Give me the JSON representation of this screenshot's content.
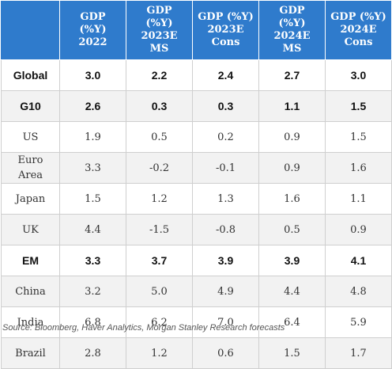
{
  "table": {
    "headers": [
      "",
      "GDP\n(%Y)\n2022",
      "GDP\n(%Y)\n2023E\nMS",
      "GDP (%Y)\n2023E\nCons",
      "GDP\n(%Y)\n2024E\nMS",
      "GDP (%Y)\n2024E\nCons"
    ],
    "header_color": "#2f7bcc",
    "rows": [
      {
        "label": "Global",
        "values": [
          "3.0",
          "2.2",
          "2.4",
          "2.7",
          "3.0"
        ],
        "style": "bold"
      },
      {
        "label": "G10",
        "values": [
          "2.6",
          "0.3",
          "0.3",
          "1.1",
          "1.5"
        ],
        "style": "bold"
      },
      {
        "label": "US",
        "values": [
          "1.9",
          "0.5",
          "0.2",
          "0.9",
          "1.5"
        ],
        "style": "normal"
      },
      {
        "label": "Euro\nArea",
        "values": [
          "3.3",
          "-0.2",
          "-0.1",
          "0.9",
          "1.6"
        ],
        "style": "normal"
      },
      {
        "label": "Japan",
        "values": [
          "1.5",
          "1.2",
          "1.3",
          "1.6",
          "1.1"
        ],
        "style": "normal"
      },
      {
        "label": "UK",
        "values": [
          "4.4",
          "-1.5",
          "-0.8",
          "0.5",
          "0.9"
        ],
        "style": "normal"
      },
      {
        "label": "EM",
        "values": [
          "3.3",
          "3.7",
          "3.9",
          "3.9",
          "4.1"
        ],
        "style": "bold"
      },
      {
        "label": "China",
        "values": [
          "3.2",
          "5.0",
          "4.9",
          "4.4",
          "4.8"
        ],
        "style": "normal"
      },
      {
        "label": "India",
        "values": [
          "6.8",
          "6.2",
          "7.0",
          "6.4",
          "5.9"
        ],
        "style": "normal"
      },
      {
        "label": "Brazil",
        "values": [
          "2.8",
          "1.2",
          "0.6",
          "1.5",
          "1.7"
        ],
        "style": "normal"
      }
    ]
  },
  "source": "Source: Bloomberg, Haver Analytics, Morgan Stanley Research forecasts"
}
